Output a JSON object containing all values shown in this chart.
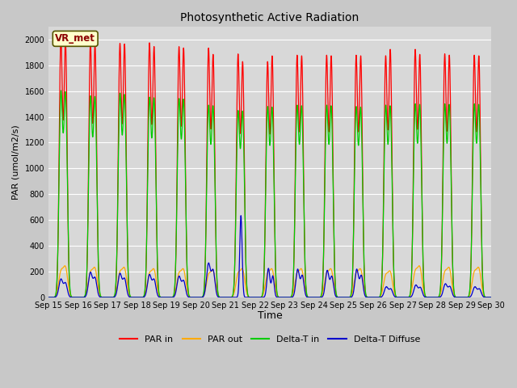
{
  "title": "Photosynthetic Active Radiation",
  "xlabel": "Time",
  "ylabel": "PAR (umol/m2/s)",
  "ylim": [
    0,
    2100
  ],
  "yticks": [
    0,
    200,
    400,
    600,
    800,
    1000,
    1200,
    1400,
    1600,
    1800,
    2000
  ],
  "fig_bg_color": "#c8c8c8",
  "plot_bg_color": "#d8d8d8",
  "color_par_in": "#ff0000",
  "color_par_out": "#ffaa00",
  "color_delta_t_in": "#00cc00",
  "color_delta_t_diffuse": "#0000cc",
  "label_par_in": "PAR in",
  "label_par_out": "PAR out",
  "label_delta_t_in": "Delta-T in",
  "label_delta_t_diffuse": "Delta-T Diffuse",
  "annotation_text": "VR_met",
  "n_days": 15,
  "start_day": 15,
  "par_in_peaks": [
    2000,
    1950,
    1940,
    1945,
    1915,
    1905,
    1860,
    1800,
    1850,
    1850,
    1850,
    1845,
    1895,
    1860,
    1850
  ],
  "par_in_peaks2": [
    1960,
    1935,
    1935,
    1915,
    1905,
    1855,
    1800,
    1845,
    1845,
    1845,
    1845,
    1895,
    1855,
    1850,
    1845
  ],
  "par_out_peaks": [
    220,
    210,
    210,
    200,
    200,
    190,
    200,
    200,
    200,
    200,
    200,
    185,
    220,
    210,
    210
  ],
  "delta_t_in_peaks": [
    1555,
    1515,
    1535,
    1505,
    1495,
    1445,
    1405,
    1435,
    1445,
    1445,
    1435,
    1445,
    1455,
    1455,
    1455
  ],
  "delta_t_in_peaks2": [
    1545,
    1510,
    1525,
    1500,
    1490,
    1440,
    1400,
    1430,
    1440,
    1440,
    1430,
    1440,
    1450,
    1450,
    1450
  ],
  "delta_t_diffuse_peaks": [
    165,
    225,
    215,
    205,
    190,
    290,
    635,
    300,
    255,
    245,
    255,
    90,
    105,
    115,
    90
  ],
  "points_per_day": 200,
  "lw": 0.9
}
